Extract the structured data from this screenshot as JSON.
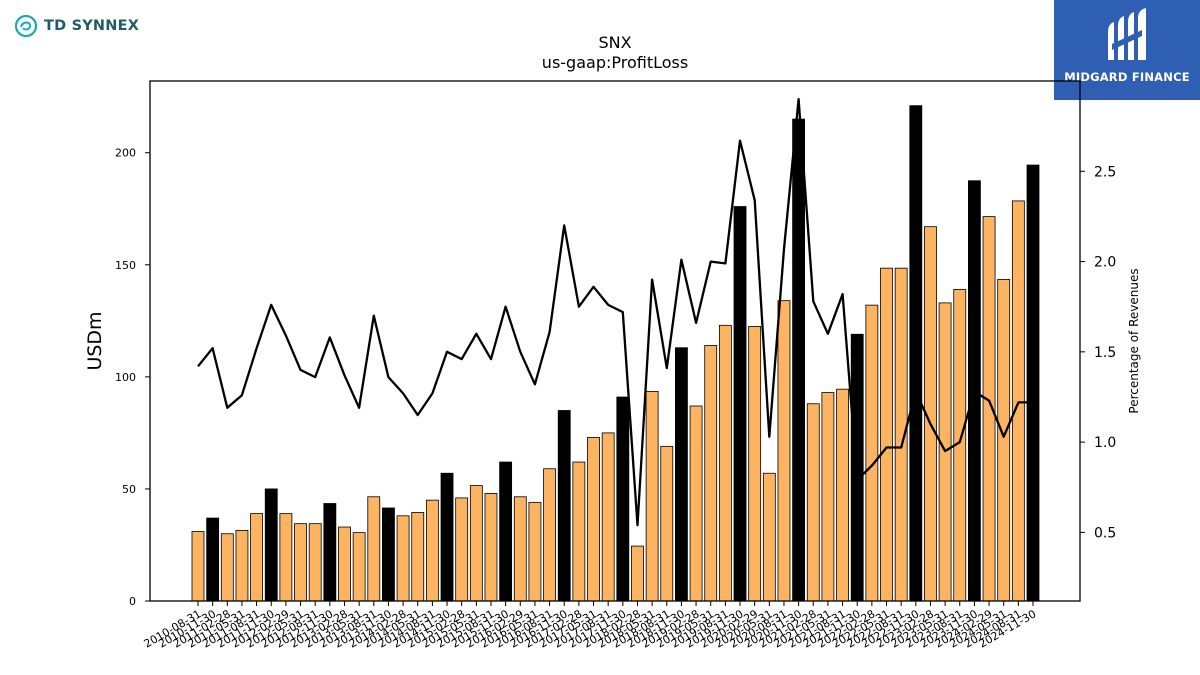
{
  "brand": {
    "left_logo_text": "TD SYNNEX",
    "left_icon": "td-synnex-swirl-icon",
    "right_logo_text": "MIDGARD FINANCE",
    "right_icon": "midgard-m-icon",
    "right_bg_color": "#2f5fb3"
  },
  "chart_data": {
    "type": "bar",
    "title": "SNX",
    "subtitle": "us-gaap:ProfitLoss",
    "ylabel": "USDm",
    "y2label": "Percentage of Revenues",
    "ylim": [
      0,
      232
    ],
    "y2lim": [
      0.12,
      3.0
    ],
    "yticks": [
      0,
      50,
      100,
      150,
      200
    ],
    "y2ticks": [
      0.5,
      1.0,
      1.5,
      2.0,
      2.5
    ],
    "grid": false,
    "bar_color": "#fdb462",
    "highlight_color": "#000000",
    "line_color": "#000000",
    "categories": [
      "2010-08-31",
      "2010-11-30",
      "2011-02-28",
      "2011-05-31",
      "2011-08-31",
      "2011-11-30",
      "2012-02-29",
      "2012-05-31",
      "2012-08-31",
      "2012-11-30",
      "2013-02-28",
      "2013-05-31",
      "2013-08-31",
      "2013-11-30",
      "2014-02-28",
      "2014-05-31",
      "2014-08-31",
      "2014-11-30",
      "2015-02-28",
      "2015-05-31",
      "2015-08-31",
      "2015-11-30",
      "2016-02-29",
      "2016-05-31",
      "2016-08-31",
      "2016-11-30",
      "2017-02-28",
      "2017-05-31",
      "2017-08-31",
      "2017-11-30",
      "2018-02-28",
      "2018-05-31",
      "2018-08-31",
      "2018-11-30",
      "2019-02-28",
      "2019-05-31",
      "2019-08-31",
      "2019-11-30",
      "2020-02-29",
      "2020-05-31",
      "2020-08-31",
      "2020-11-30",
      "2021-02-28",
      "2021-05-31",
      "2021-08-31",
      "2021-11-30",
      "2022-02-28",
      "2022-05-31",
      "2022-08-31",
      "2022-11-30",
      "2023-02-28",
      "2023-05-31",
      "2023-08-31",
      "2023-11-30",
      "2024-02-29",
      "2024-05-31",
      "2024-08-31",
      "2024-11-30"
    ],
    "tick_labels": [
      "2010-08-31",
      "2010-11-30",
      "2011-02-28",
      "2011-05-31",
      "2011-08-31",
      "2011-11-30",
      "2012-02-29",
      "2012-05-31",
      "2012-08-31",
      "2012-11-30",
      "2013-02-28",
      "2013-05-31",
      "2013-08-31",
      "2013-11-30",
      "2014-02-28",
      "2014-05-31",
      "2014-08-31",
      "2014-11-30",
      "2015-02-28",
      "2015-05-31",
      "2015-08-31",
      "2015-11-30",
      "2016-02-29",
      "2016-05-31",
      "2016-08-31",
      "2016-11-30",
      "2017-02-28",
      "2017-05-31",
      "2017-08-31",
      "2017-11-30",
      "2018-02-28",
      "2018-05-31",
      "2018-08-31",
      "2018-11-30",
      "2019-02-28",
      "2019-05-31",
      "2019-08-31",
      "2019-11-30",
      "2020-02-29",
      "2020-05-31",
      "2020-08-31",
      "2020-11-30",
      "2021-02-28",
      "2021-05-31",
      "2021-08-31",
      "2021-11-30",
      "2022-02-28",
      "2022-05-31",
      "2022-08-31",
      "2022-11-30",
      "2023-02-28",
      "2023-05-31",
      "2023-08-31",
      "2023-11-30",
      "2024-02-29",
      "2024-05-31",
      "2024-08-31",
      "2024-11-30"
    ],
    "values": [
      31,
      37,
      30,
      31.5,
      39,
      50,
      39,
      34.5,
      34.5,
      43.5,
      33,
      30.5,
      46.5,
      41.5,
      38,
      39.5,
      45,
      57,
      46,
      51.5,
      48,
      62,
      46.5,
      44,
      59,
      85,
      62,
      73,
      75,
      91,
      24.5,
      93.5,
      69,
      113,
      87,
      114,
      123,
      176,
      122.5,
      57,
      134,
      215,
      88,
      93,
      94.5,
      119,
      132,
      148.5,
      148.5,
      221,
      167,
      133,
      139,
      187.5,
      171.5,
      143.5,
      178.5,
      194.5
    ],
    "highlight": [
      false,
      true,
      false,
      false,
      false,
      true,
      false,
      false,
      false,
      true,
      false,
      false,
      false,
      true,
      false,
      false,
      false,
      true,
      false,
      false,
      false,
      true,
      false,
      false,
      false,
      true,
      false,
      false,
      false,
      true,
      false,
      false,
      false,
      true,
      false,
      false,
      false,
      true,
      false,
      false,
      false,
      true,
      false,
      false,
      false,
      true,
      false,
      false,
      false,
      true,
      false,
      false,
      false,
      true,
      false,
      false,
      false,
      true
    ],
    "series": [
      {
        "axis": "right",
        "type": "line",
        "values": [
          1.42,
          1.52,
          1.19,
          1.26,
          1.52,
          1.76,
          1.59,
          1.4,
          1.36,
          1.58,
          1.37,
          1.19,
          1.7,
          1.36,
          1.27,
          1.15,
          1.27,
          1.5,
          1.46,
          1.6,
          1.46,
          1.75,
          1.5,
          1.32,
          1.61,
          2.2,
          1.75,
          1.86,
          1.76,
          1.72,
          0.54,
          1.9,
          1.41,
          2.01,
          1.66,
          2.0,
          1.99,
          2.67,
          2.34,
          1.03,
          2.07,
          2.9,
          1.78,
          1.6,
          1.82,
          0.79,
          0.87,
          0.97,
          0.97,
          1.28,
          1.1,
          0.95,
          1.0,
          1.28,
          1.23,
          1.03,
          1.22,
          1.22
        ]
      }
    ]
  }
}
